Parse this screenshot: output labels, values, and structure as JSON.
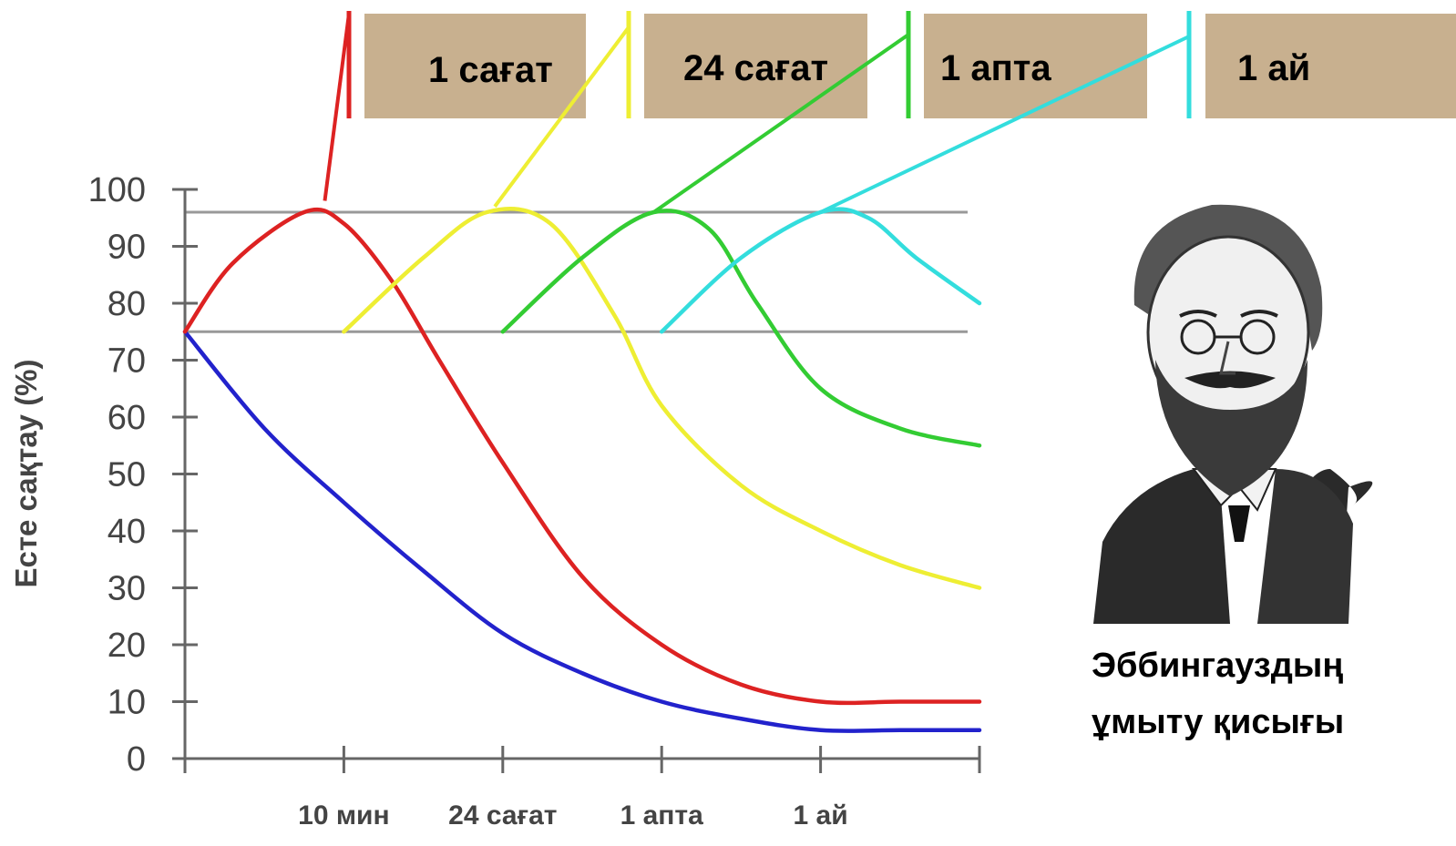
{
  "chart_data": {
    "type": "line",
    "title": "",
    "xlabel": "",
    "ylabel": "Есте сақтау (%)",
    "ylim": [
      0,
      100
    ],
    "yticks": [
      0,
      10,
      20,
      30,
      40,
      50,
      60,
      70,
      80,
      90,
      100
    ],
    "x_tick_labels": [
      "10 мин",
      "24 сағат",
      "1 апта",
      "1 ай"
    ],
    "xlim": [
      0,
      5
    ],
    "reference_lines": [
      75,
      96
    ],
    "interval_labels": [
      "1 сағат",
      "24 сағат",
      "1 апта",
      "1 ай"
    ],
    "series": [
      {
        "color": "#2222cc",
        "x": [
          0,
          0.5,
          1,
          1.5,
          2,
          2.5,
          3,
          3.5,
          4,
          4.5,
          5
        ],
        "y": [
          75,
          58,
          45,
          33,
          22,
          15,
          10,
          7,
          5,
          5,
          5
        ]
      },
      {
        "color": "#dd2222",
        "x": [
          0,
          0.3,
          0.75,
          1,
          1.3,
          1.6,
          2,
          2.5,
          3,
          3.5,
          4,
          4.5,
          5
        ],
        "y": [
          75,
          87,
          96,
          94,
          84,
          70,
          52,
          32,
          20,
          13,
          10,
          10,
          10
        ]
      },
      {
        "color": "#eeee33",
        "x": [
          1,
          1.5,
          1.9,
          2.3,
          2.7,
          3,
          3.5,
          4,
          4.5,
          5
        ],
        "y": [
          75,
          88,
          96,
          94,
          78,
          62,
          48,
          40,
          34,
          30
        ]
      },
      {
        "color": "#33cc33",
        "x": [
          2,
          2.5,
          2.95,
          3.3,
          3.6,
          4,
          4.5,
          5
        ],
        "y": [
          75,
          88,
          96,
          93,
          80,
          65,
          58,
          55
        ]
      },
      {
        "color": "#33dddd",
        "x": [
          3,
          3.5,
          4,
          4.3,
          4.6,
          5
        ],
        "y": [
          75,
          88,
          96,
          95,
          88,
          80
        ]
      }
    ],
    "grid": false,
    "legend": "none"
  },
  "portrait": {
    "name": "ebbinghaus-portrait"
  },
  "caption": {
    "line1": "Эббингауздың",
    "line2": "ұмыту қисығы"
  }
}
